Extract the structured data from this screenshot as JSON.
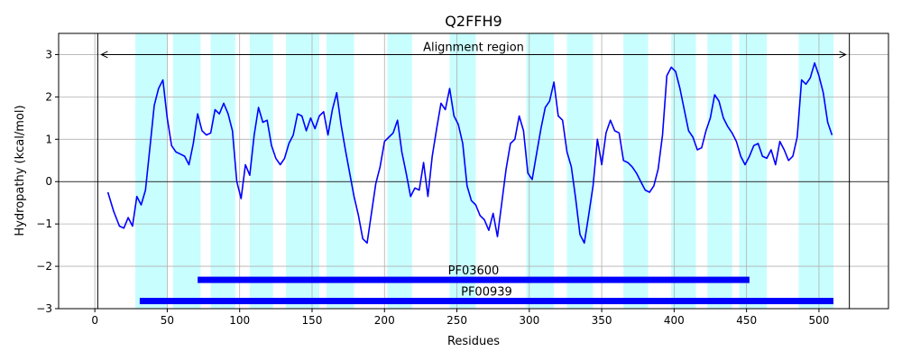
{
  "chart_data": {
    "type": "line",
    "title": "Q2FFH9",
    "xlabel": "Residues",
    "ylabel": "Hydropathy (kcal/mol)",
    "xlim": [
      -25,
      548
    ],
    "ylim": [
      -3,
      3.5
    ],
    "xticks": [
      0,
      50,
      100,
      150,
      200,
      250,
      300,
      350,
      400,
      450,
      500
    ],
    "yticks": [
      -3,
      -2,
      -1,
      0,
      1,
      2,
      3
    ],
    "grid": true,
    "colors": {
      "line": "#0000ff",
      "tm": "#c8fefe",
      "domain": "#0000ff",
      "axis": "#000000",
      "grid": "#b0b0b0"
    },
    "series": [
      {
        "x": [
          9,
          13,
          17,
          20,
          23,
          26,
          29,
          32,
          35,
          38,
          41,
          44,
          47,
          50,
          53,
          56,
          59,
          62,
          65,
          68,
          71,
          74,
          77,
          80,
          83,
          86,
          89,
          92,
          95,
          98,
          101,
          104,
          107,
          110,
          113,
          116,
          119,
          122,
          125,
          128,
          131,
          134,
          137,
          140,
          143,
          146,
          149,
          152,
          155,
          158,
          161,
          164,
          167,
          170,
          173,
          176,
          179,
          182,
          185,
          188,
          191,
          194,
          197,
          200,
          203,
          206,
          209,
          212,
          215,
          218,
          221,
          224,
          227,
          230,
          233,
          236,
          239,
          242,
          245,
          248,
          251,
          254,
          257,
          260,
          263,
          266,
          269,
          272,
          275,
          278,
          281,
          284,
          287,
          290,
          293,
          296,
          299,
          302,
          305,
          308,
          311,
          314,
          317,
          320,
          323,
          326,
          329,
          332,
          335,
          338,
          341,
          344,
          347,
          350,
          353,
          356,
          359,
          362,
          365,
          368,
          371,
          374,
          377,
          380,
          383,
          386,
          389,
          392,
          395,
          398,
          401,
          404,
          407,
          410,
          413,
          416,
          419,
          422,
          425,
          428,
          431,
          434,
          437,
          440,
          443,
          446,
          449,
          452,
          455,
          458,
          461,
          464,
          467,
          470,
          473,
          476,
          479,
          482,
          485,
          488,
          491,
          494,
          497,
          500,
          503,
          506,
          509
        ],
        "y": [
          -0.25,
          -0.7,
          -1.05,
          -1.1,
          -0.85,
          -1.05,
          -0.35,
          -0.55,
          -0.2,
          0.8,
          1.8,
          2.2,
          2.4,
          1.5,
          0.85,
          0.7,
          0.65,
          0.6,
          0.4,
          0.9,
          1.6,
          1.2,
          1.1,
          1.15,
          1.7,
          1.6,
          1.85,
          1.6,
          1.2,
          0.0,
          -0.4,
          0.4,
          0.15,
          1.1,
          1.75,
          1.4,
          1.45,
          0.85,
          0.55,
          0.4,
          0.55,
          0.9,
          1.1,
          1.6,
          1.55,
          1.2,
          1.5,
          1.25,
          1.55,
          1.65,
          1.1,
          1.7,
          2.1,
          1.35,
          0.75,
          0.2,
          -0.35,
          -0.8,
          -1.35,
          -1.45,
          -0.75,
          -0.05,
          0.35,
          0.95,
          1.05,
          1.15,
          1.45,
          0.7,
          0.2,
          -0.35,
          -0.15,
          -0.2,
          0.45,
          -0.35,
          0.6,
          1.25,
          1.85,
          1.7,
          2.2,
          1.55,
          1.35,
          0.9,
          -0.1,
          -0.45,
          -0.55,
          -0.8,
          -0.9,
          -1.15,
          -0.75,
          -1.3,
          -0.5,
          0.3,
          0.9,
          1.0,
          1.55,
          1.2,
          0.2,
          0.05,
          0.65,
          1.25,
          1.75,
          1.9,
          2.35,
          1.55,
          1.45,
          0.7,
          0.35,
          -0.4,
          -1.25,
          -1.45,
          -0.8,
          -0.1,
          1.0,
          0.4,
          1.15,
          1.45,
          1.2,
          1.15,
          0.5,
          0.45,
          0.35,
          0.2,
          0.0,
          -0.2,
          -0.25,
          -0.1,
          0.3,
          1.1,
          2.5,
          2.7,
          2.6,
          2.2,
          1.7,
          1.2,
          1.05,
          0.75,
          0.8,
          1.2,
          1.5,
          2.05,
          1.9,
          1.5,
          1.3,
          1.15,
          0.95,
          0.6,
          0.4,
          0.6,
          0.85,
          0.9,
          0.6,
          0.55,
          0.75,
          0.4,
          0.95,
          0.75,
          0.5,
          0.6,
          1.05,
          2.4,
          2.3,
          2.45,
          2.8,
          2.5,
          2.1,
          1.4,
          1.1
        ]
      }
    ],
    "tm_regions": [
      [
        28,
        50
      ],
      [
        54,
        73
      ],
      [
        80,
        97
      ],
      [
        107,
        123
      ],
      [
        132,
        155
      ],
      [
        160,
        179
      ],
      [
        202,
        219
      ],
      [
        245,
        263
      ],
      [
        298,
        317
      ],
      [
        326,
        344
      ],
      [
        365,
        382
      ],
      [
        398,
        415
      ],
      [
        423,
        440
      ],
      [
        445,
        464
      ],
      [
        486,
        510
      ]
    ],
    "alignment_region": {
      "label": "Alignment region",
      "start": 2,
      "end": 521,
      "y": 3.0
    },
    "domains": [
      {
        "label": "PF03600",
        "start": 71,
        "end": 452,
        "y": -2.32
      },
      {
        "label": "PF00939",
        "start": 31,
        "end": 510,
        "y": -2.82
      }
    ]
  }
}
